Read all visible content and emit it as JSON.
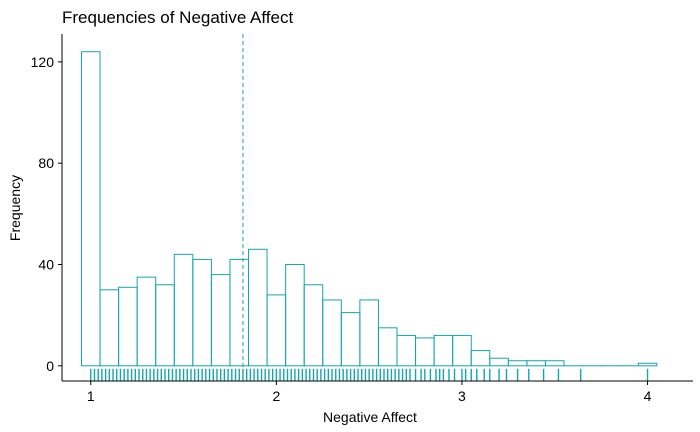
{
  "chart_data": {
    "type": "bar",
    "title": "Frequencies of Negative Affect",
    "xlabel": "Negative Affect",
    "ylabel": "Frequency",
    "x_ticks": [
      1,
      2,
      3,
      4
    ],
    "y_ticks": [
      0,
      40,
      80,
      120
    ],
    "xlim": [
      0.845,
      4.245
    ],
    "ylim": [
      -6,
      131
    ],
    "grid": false,
    "bin_width": 0.1,
    "bins": [
      {
        "start": 0.95,
        "end": 1.05,
        "count": 124
      },
      {
        "start": 1.05,
        "end": 1.15,
        "count": 30
      },
      {
        "start": 1.15,
        "end": 1.25,
        "count": 31
      },
      {
        "start": 1.25,
        "end": 1.35,
        "count": 35
      },
      {
        "start": 1.35,
        "end": 1.45,
        "count": 32
      },
      {
        "start": 1.45,
        "end": 1.55,
        "count": 44
      },
      {
        "start": 1.55,
        "end": 1.65,
        "count": 42
      },
      {
        "start": 1.65,
        "end": 1.75,
        "count": 36
      },
      {
        "start": 1.75,
        "end": 1.85,
        "count": 42
      },
      {
        "start": 1.85,
        "end": 1.95,
        "count": 46
      },
      {
        "start": 1.95,
        "end": 2.05,
        "count": 28
      },
      {
        "start": 2.05,
        "end": 2.15,
        "count": 40
      },
      {
        "start": 2.15,
        "end": 2.25,
        "count": 32
      },
      {
        "start": 2.25,
        "end": 2.35,
        "count": 26
      },
      {
        "start": 2.35,
        "end": 2.45,
        "count": 21
      },
      {
        "start": 2.45,
        "end": 2.55,
        "count": 26
      },
      {
        "start": 2.55,
        "end": 2.65,
        "count": 15
      },
      {
        "start": 2.65,
        "end": 2.75,
        "count": 12
      },
      {
        "start": 2.75,
        "end": 2.85,
        "count": 11
      },
      {
        "start": 2.85,
        "end": 2.95,
        "count": 12
      },
      {
        "start": 2.95,
        "end": 3.05,
        "count": 12
      },
      {
        "start": 3.05,
        "end": 3.15,
        "count": 6
      },
      {
        "start": 3.15,
        "end": 3.25,
        "count": 3
      },
      {
        "start": 3.25,
        "end": 3.35,
        "count": 2
      },
      {
        "start": 3.35,
        "end": 3.45,
        "count": 2
      },
      {
        "start": 3.45,
        "end": 3.55,
        "count": 2
      },
      {
        "start": 3.55,
        "end": 3.65,
        "count": 0
      },
      {
        "start": 3.65,
        "end": 3.75,
        "count": 0
      },
      {
        "start": 3.75,
        "end": 3.85,
        "count": 0
      },
      {
        "start": 3.85,
        "end": 3.95,
        "count": 0
      },
      {
        "start": 3.95,
        "end": 4.05,
        "count": 1
      }
    ],
    "mean_line": 1.82,
    "rug": [
      1.0,
      1.02,
      1.04,
      1.06,
      1.08,
      1.1,
      1.12,
      1.14,
      1.16,
      1.18,
      1.2,
      1.22,
      1.24,
      1.26,
      1.28,
      1.3,
      1.32,
      1.34,
      1.36,
      1.38,
      1.4,
      1.42,
      1.44,
      1.46,
      1.48,
      1.5,
      1.52,
      1.54,
      1.56,
      1.58,
      1.6,
      1.62,
      1.64,
      1.66,
      1.68,
      1.7,
      1.72,
      1.74,
      1.76,
      1.78,
      1.8,
      1.82,
      1.84,
      1.86,
      1.88,
      1.9,
      1.92,
      1.94,
      1.96,
      1.98,
      2.0,
      2.02,
      2.04,
      2.06,
      2.08,
      2.1,
      2.12,
      2.14,
      2.16,
      2.18,
      2.2,
      2.22,
      2.24,
      2.26,
      2.28,
      2.3,
      2.32,
      2.34,
      2.36,
      2.38,
      2.4,
      2.42,
      2.44,
      2.46,
      2.48,
      2.5,
      2.52,
      2.54,
      2.56,
      2.58,
      2.6,
      2.62,
      2.64,
      2.66,
      2.68,
      2.7,
      2.72,
      2.75,
      2.78,
      2.8,
      2.83,
      2.86,
      2.88,
      2.9,
      2.93,
      2.96,
      3.0,
      3.02,
      3.05,
      3.08,
      3.12,
      3.15,
      3.2,
      3.24,
      3.3,
      3.36,
      3.44,
      3.52,
      3.64,
      4.0
    ],
    "colors": {
      "bar_stroke": "#14a5ae",
      "rug": "#14a5ae",
      "mean_line": "#14a5ae",
      "axis": "#000000",
      "text": "#000000"
    }
  }
}
